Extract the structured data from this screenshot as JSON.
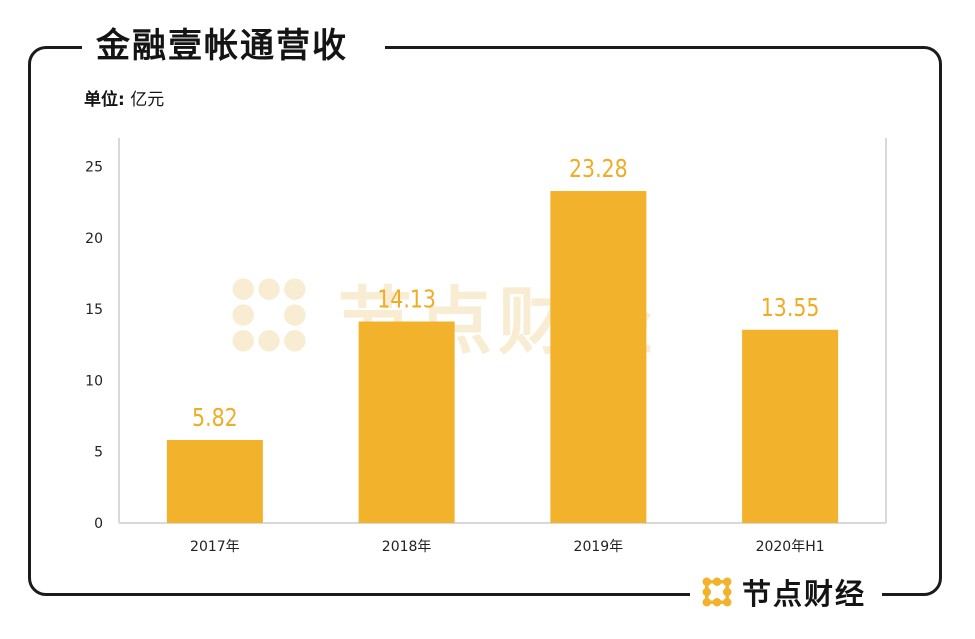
{
  "title": "金融壹帐通营收",
  "unit": {
    "label": "单位:",
    "value": "亿元"
  },
  "brand": {
    "name": "节点财经",
    "icon": "node-grid-logo-icon"
  },
  "colors": {
    "bar": "#f2b22b",
    "data_label": "#efad25",
    "axis_text": "#222222",
    "grid_frame": "#d9d9d9",
    "frame": "#1b1b1b"
  },
  "chart_data": {
    "type": "bar",
    "title": "金融壹帐通营收",
    "ylabel": "亿元",
    "categories": [
      "2017年",
      "2018年",
      "2019年",
      "2020年H1"
    ],
    "values": [
      5.82,
      14.13,
      23.28,
      13.55
    ],
    "data_labels": [
      "5.82",
      "14.13",
      "23.28",
      "13.55"
    ],
    "yticks": [
      0,
      5,
      10,
      15,
      20,
      25
    ],
    "ylim": [
      0,
      27
    ],
    "grid": false,
    "legend": "none"
  }
}
